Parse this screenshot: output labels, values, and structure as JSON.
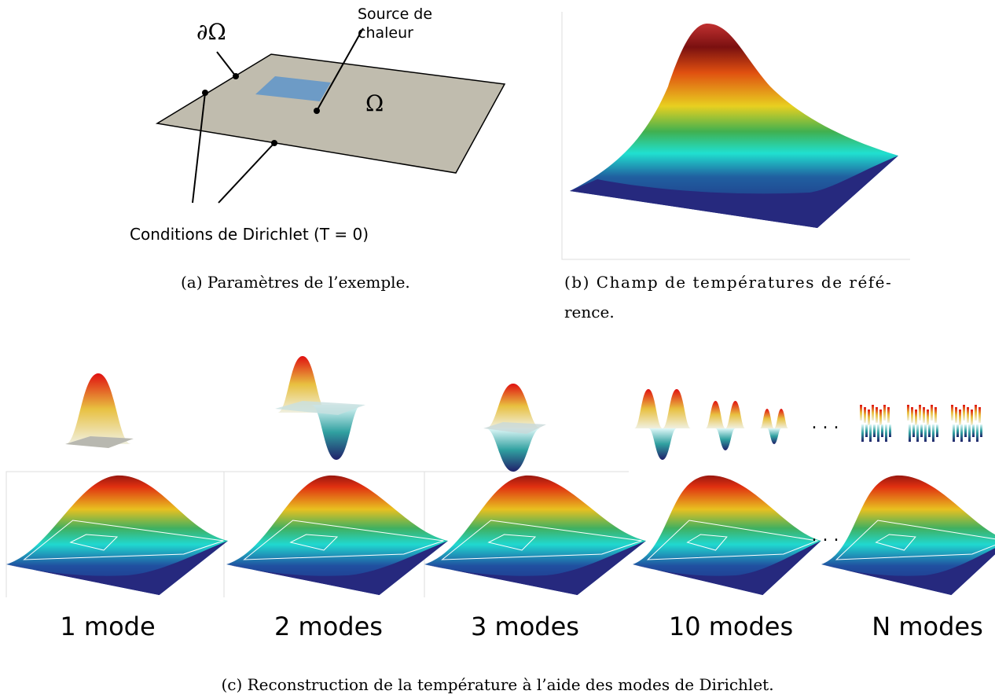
{
  "panel_a": {
    "boundary_label": "∂Ω",
    "source_label": [
      "Source de",
      "chaleur"
    ],
    "domain_label": "Ω",
    "dirichlet_label": "Conditions de Dirichlet (T = 0)",
    "caption": "(a) Paramètres de l’exemple."
  },
  "panel_b": {
    "caption_lines": [
      "(b) Champ de températures de réfé-",
      "rence."
    ]
  },
  "panel_c": {
    "mode_labels": [
      "1 mode",
      "2 modes",
      "3 modes",
      "10 modes",
      "N modes"
    ],
    "ellipsis": ". . .",
    "caption": "(c) Reconstruction de la température à l’aide des modes de Dirichlet."
  }
}
